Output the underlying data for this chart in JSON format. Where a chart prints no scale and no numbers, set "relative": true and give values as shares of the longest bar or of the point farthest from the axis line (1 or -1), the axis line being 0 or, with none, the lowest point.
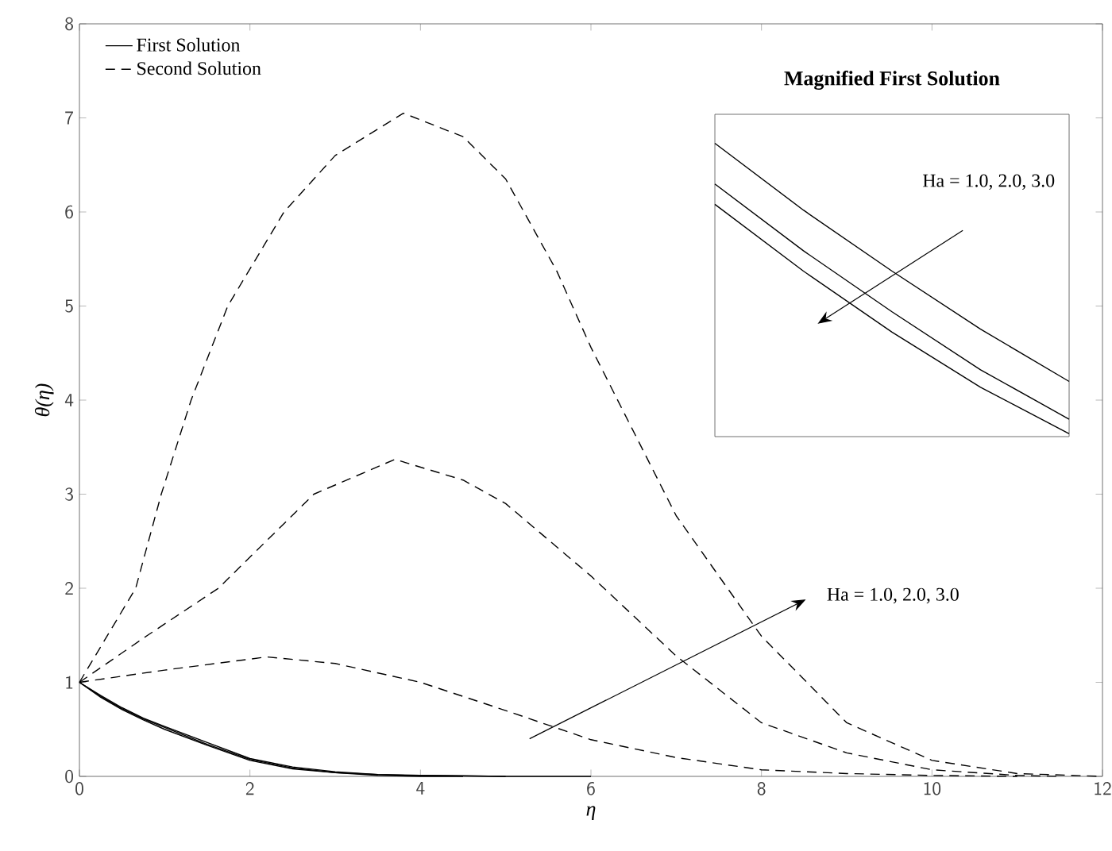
{
  "chart_data": [
    {
      "type": "line",
      "xlabel": "η",
      "ylabel": "θ(η)",
      "xlim": [
        0,
        12
      ],
      "ylim": [
        0,
        8
      ],
      "xticks": [
        0,
        2,
        4,
        6,
        8,
        10,
        12
      ],
      "yticks": [
        0,
        1,
        2,
        3,
        4,
        5,
        6,
        7,
        8
      ],
      "legend": "top left",
      "annotations": [
        "Ha = 1.0, 2.0, 3.0"
      ],
      "series": [
        {
          "name": "First Solution",
          "color": "#000000",
          "line_style": "solid",
          "x": [
            0,
            0.25,
            0.5,
            0.75,
            1,
            1.5,
            2,
            2.5,
            3,
            3.5,
            4,
            5,
            6
          ],
          "values": [
            1,
            0.86,
            0.73,
            0.62,
            0.53,
            0.36,
            0.19,
            0.1,
            0.05,
            0.02,
            0.01,
            0,
            0
          ]
        },
        {
          "color": "#000000",
          "line_style": "solid",
          "x": [
            0,
            0.25,
            0.5,
            0.75,
            1,
            1.5,
            2,
            2.5,
            3,
            3.5,
            4,
            5
          ],
          "values": [
            1,
            0.85,
            0.72,
            0.61,
            0.52,
            0.34,
            0.18,
            0.09,
            0.04,
            0.02,
            0.01,
            0
          ]
        },
        {
          "color": "#000000",
          "line_style": "solid",
          "x": [
            0,
            0.25,
            0.5,
            0.75,
            1,
            1.5,
            2,
            2.5,
            3,
            3.5,
            4,
            4.5
          ],
          "values": [
            1,
            0.84,
            0.71,
            0.6,
            0.5,
            0.33,
            0.17,
            0.08,
            0.04,
            0.01,
            0,
            0
          ]
        },
        {
          "name": "Second Solution",
          "color": "#000000",
          "line_style": "dashed",
          "x": [
            0,
            1,
            2.2,
            3,
            4,
            5,
            6,
            7,
            8,
            9,
            10,
            11
          ],
          "values": [
            1,
            1.13,
            1.27,
            1.2,
            1.0,
            0.7,
            0.39,
            0.2,
            0.07,
            0.03,
            0.01,
            0
          ]
        },
        {
          "color": "#000000",
          "line_style": "dashed",
          "x": [
            0,
            0.8,
            1.63,
            2.75,
            3.7,
            4.5,
            5,
            6,
            7,
            8,
            9,
            10,
            11,
            11.5
          ],
          "values": [
            1,
            1.5,
            2,
            3,
            3.37,
            3.15,
            2.9,
            2.13,
            1.28,
            0.57,
            0.25,
            0.07,
            0.01,
            0
          ]
        },
        {
          "color": "#000000",
          "line_style": "dashed",
          "x": [
            0,
            0.66,
            0.96,
            1.31,
            1.74,
            2.4,
            3,
            3.8,
            4.5,
            5,
            5.6,
            6,
            7,
            8,
            9,
            10,
            11,
            12
          ],
          "values": [
            1,
            2,
            3,
            4,
            5,
            6,
            6.6,
            7.05,
            6.8,
            6.35,
            5.37,
            4.56,
            2.77,
            1.49,
            0.57,
            0.17,
            0.03,
            0
          ]
        }
      ]
    },
    {
      "type": "line",
      "relative": true,
      "title": "Magnified First Solution",
      "categories": [
        null,
        null,
        null,
        null,
        null
      ],
      "annotations": [
        "Ha = 1.0, 2.0, 3.0"
      ],
      "series": [
        {
          "color": "#000000",
          "line_style": "solid",
          "values": [
            1.0,
            0.77,
            0.56,
            0.36,
            0.18
          ]
        },
        {
          "color": "#000000",
          "line_style": "solid",
          "values": [
            0.86,
            0.63,
            0.42,
            0.22,
            0.05
          ]
        },
        {
          "color": "#000000",
          "line_style": "solid",
          "values": [
            0.79,
            0.56,
            0.35,
            0.16,
            0.0
          ]
        }
      ]
    }
  ]
}
